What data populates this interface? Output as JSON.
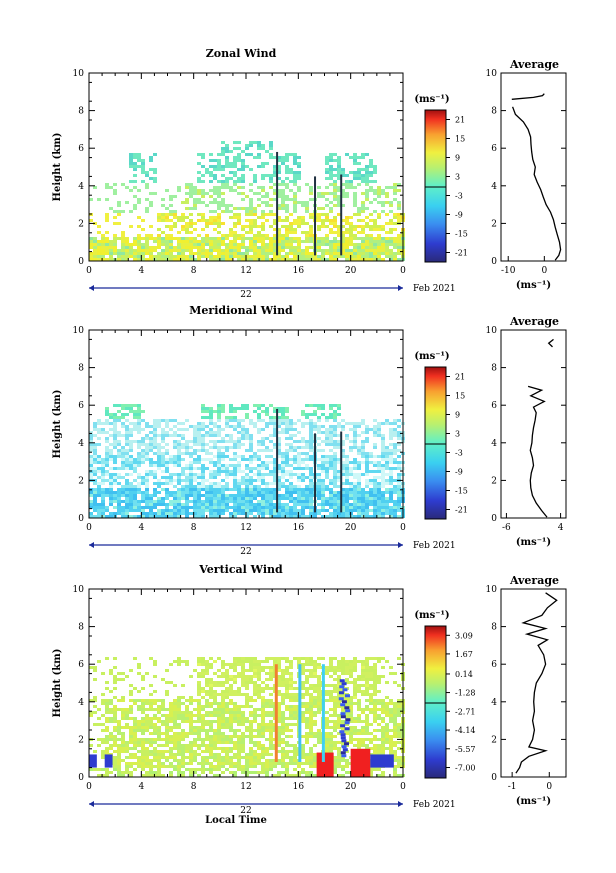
{
  "chart_data": [
    {
      "type": "heatmap",
      "title": "Zonal Wind",
      "ylabel": "Height (km)",
      "xlabel": "",
      "ylim": [
        0,
        10
      ],
      "xlim": [
        0,
        24
      ],
      "x_ticks": [
        "0",
        "4",
        "8",
        "12",
        "16",
        "20",
        "0"
      ],
      "y_ticks": [
        "0",
        "2",
        "4",
        "6",
        "8",
        "10"
      ],
      "date_day": "22",
      "date_month": "Feb 2021",
      "colorbar": {
        "unit": "(ms⁻¹)",
        "range": [
          -24,
          24
        ],
        "ticks": [
          "21",
          "15",
          "9",
          "3",
          "-3",
          "-9",
          "-15",
          "-21"
        ],
        "tick_values": [
          21,
          15,
          9,
          3,
          -3,
          -9,
          -15,
          -21
        ]
      },
      "profile": {
        "title": "Average",
        "xlabel": "(ms⁻¹)",
        "xlim": [
          -12,
          6
        ],
        "x_ticks": [
          "-10",
          "0"
        ],
        "x_tick_values": [
          -10,
          0
        ],
        "y": [
          0.05,
          0.3,
          0.6,
          1.0,
          1.4,
          1.8,
          2.2,
          2.6,
          3.0,
          3.4,
          3.8,
          4.2,
          4.6,
          5.0,
          5.4,
          5.8,
          6.2,
          6.6,
          7.0,
          7.4,
          7.8,
          8.2
        ],
        "values": [
          3.0,
          4.0,
          4.5,
          4.2,
          3.6,
          3.0,
          2.5,
          1.7,
          0.5,
          -0.3,
          -1.0,
          -2.0,
          -2.8,
          -2.5,
          -3.2,
          -3.5,
          -3.7,
          -3.8,
          -4.5,
          -5.8,
          -8.0,
          -8.8
        ],
        "upper_y": [
          8.6,
          8.7,
          8.8,
          8.9
        ],
        "upper_values": [
          -9.0,
          -3.0,
          -0.5,
          0.0
        ]
      }
    },
    {
      "type": "heatmap",
      "title": "Meridional Wind",
      "ylabel": "Height (km)",
      "xlabel": "",
      "ylim": [
        0,
        10
      ],
      "xlim": [
        0,
        24
      ],
      "x_ticks": [
        "0",
        "4",
        "8",
        "12",
        "16",
        "20",
        "0"
      ],
      "y_ticks": [
        "0",
        "2",
        "4",
        "6",
        "8",
        "10"
      ],
      "date_day": "22",
      "date_month": "Feb 2021",
      "colorbar": {
        "unit": "(ms⁻¹)",
        "range": [
          -24,
          24
        ],
        "ticks": [
          "21",
          "15",
          "9",
          "3",
          "-3",
          "-9",
          "-15",
          "-21"
        ],
        "tick_values": [
          21,
          15,
          9,
          3,
          -3,
          -9,
          -15,
          -21
        ]
      },
      "profile": {
        "title": "Average",
        "xlabel": "(ms⁻¹)",
        "xlim": [
          -7,
          5
        ],
        "x_ticks": [
          "-6",
          "4"
        ],
        "x_tick_values": [
          -6,
          4
        ],
        "y": [
          0.05,
          0.4,
          0.8,
          1.2,
          1.6,
          2.0,
          2.4,
          2.8,
          3.2,
          3.6,
          4.0,
          4.4,
          4.8,
          5.2,
          5.6,
          5.9,
          6.2,
          6.5,
          6.8,
          7.0
        ],
        "values": [
          1.5,
          0.5,
          -0.5,
          -1.2,
          -1.5,
          -1.6,
          -1.4,
          -1.0,
          -1.2,
          -1.6,
          -1.3,
          -1.2,
          -1.0,
          -0.7,
          -0.5,
          -1.0,
          1.0,
          -1.5,
          0.5,
          -2.0
        ],
        "upper_y": [
          9.1,
          9.3,
          9.5
        ],
        "upper_values": [
          2.5,
          1.8,
          2.7
        ]
      }
    },
    {
      "type": "heatmap",
      "title": "Vertical Wind",
      "ylabel": "Height (km)",
      "xlabel": "Local Time",
      "ylim": [
        0,
        10
      ],
      "xlim": [
        0,
        24
      ],
      "x_ticks": [
        "0",
        "4",
        "8",
        "12",
        "16",
        "20",
        "0"
      ],
      "y_ticks": [
        "0",
        "2",
        "4",
        "6",
        "8",
        "10"
      ],
      "date_day": "22",
      "date_month": "Feb 2021",
      "colorbar": {
        "unit": "(ms⁻¹)",
        "range": [
          -7.8,
          3.8
        ],
        "ticks": [
          "3.09",
          "1.67",
          "0.14",
          "-1.28",
          "-2.71",
          "-4.14",
          "-5.57",
          "-7.00"
        ],
        "tick_values": [
          3.09,
          1.67,
          0.14,
          -1.28,
          -2.71,
          -4.14,
          -5.57,
          -7.0
        ]
      },
      "profile": {
        "title": "Average",
        "xlabel": "(ms⁻¹)",
        "xlim": [
          -1.3,
          0.45
        ],
        "x_ticks": [
          "-1",
          "0"
        ],
        "x_tick_values": [
          -1,
          0
        ],
        "y": [
          0.2,
          0.5,
          0.8,
          1.1,
          1.4,
          1.6,
          2.0,
          2.5,
          3.0,
          3.5,
          4.0,
          4.5,
          5.0,
          5.5,
          6.0,
          6.5,
          7.0,
          7.3,
          7.6,
          7.9,
          8.2,
          8.6,
          9.0,
          9.4,
          9.8
        ],
        "values": [
          -0.9,
          -0.8,
          -0.75,
          -0.55,
          -0.1,
          -0.55,
          -0.45,
          -0.4,
          -0.45,
          -0.4,
          -0.42,
          -0.4,
          -0.35,
          -0.2,
          -0.1,
          -0.15,
          -0.3,
          -0.05,
          -0.6,
          -0.1,
          -0.7,
          -0.2,
          -0.05,
          0.2,
          -0.1
        ]
      }
    }
  ]
}
